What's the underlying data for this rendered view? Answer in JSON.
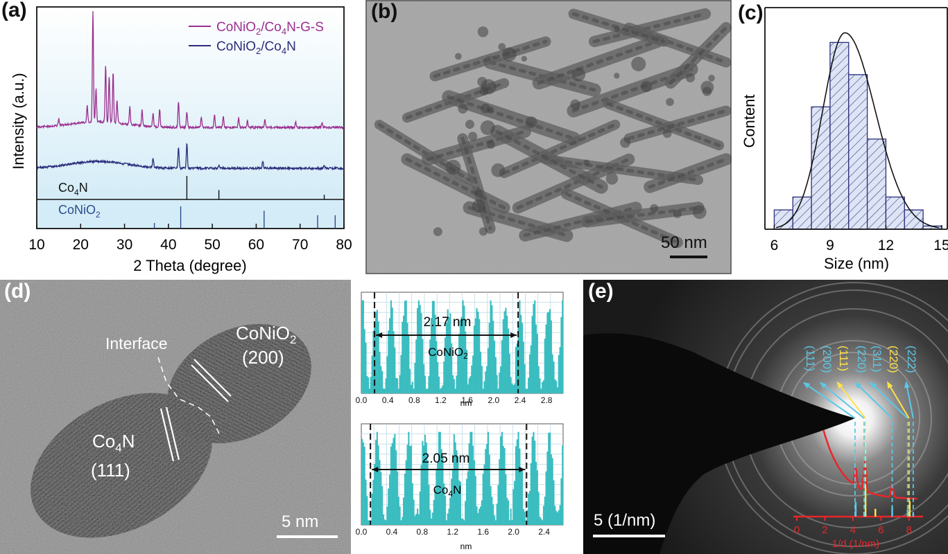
{
  "panels": {
    "a": {
      "label": "(a)",
      "legend": [
        "CoNiO2/Co4N-G-S",
        "CoNiO2/Co4N"
      ],
      "legend_colors": [
        "#9b2e8e",
        "#2b2d7c"
      ],
      "ylabel": "Intensity (a.u.)",
      "xlabel": "2 Theta (degree)",
      "ref1": "Co4N",
      "ref2": "CoNiO2"
    },
    "b": {
      "label": "(b)",
      "scale": "50 nm"
    },
    "c": {
      "label": "(c)",
      "ylabel": "Content",
      "xlabel": "Size (nm)"
    },
    "d": {
      "label": "(d)",
      "interface": "Interface",
      "phase1": "CoNiO2",
      "phase1_plane": "(200)",
      "phase2": "Co4N",
      "phase2_plane": "(111)",
      "scale": "5 nm",
      "profile1": {
        "distance": "2.17 nm",
        "name": "CoNiO2",
        "xlabel": "nm"
      },
      "profile2": {
        "distance": "2.05 nm",
        "name": "Co4N",
        "xlabel": "nm"
      }
    },
    "e": {
      "label": "(e)",
      "scale": "5 (1/nm)",
      "xlabel": "1/d (1/nm)",
      "rings": [
        {
          "label": "(111)",
          "color": "#5bc8e8"
        },
        {
          "label": "(200)",
          "color": "#5bc8e8"
        },
        {
          "label": "(111)",
          "color": "#ffe24a"
        },
        {
          "label": "(220)",
          "color": "#5bc8e8"
        },
        {
          "label": "(311)",
          "color": "#5bc8e8"
        },
        {
          "label": "(220)",
          "color": "#ffe24a"
        },
        {
          "label": "(222)",
          "color": "#5bc8e8"
        }
      ]
    }
  },
  "chart_data": [
    {
      "panel": "a",
      "type": "line",
      "x_ticks": [
        10,
        20,
        30,
        40,
        50,
        60,
        70,
        80
      ],
      "xlim": [
        10,
        80
      ],
      "series": [
        {
          "name": "CoNiO2/Co4N-G-S",
          "peaks": [
            [
              15,
              0.06
            ],
            [
              21.5,
              0.15
            ],
            [
              22.8,
              1.0
            ],
            [
              23.5,
              0.3
            ],
            [
              25.7,
              0.52
            ],
            [
              26.5,
              0.42
            ],
            [
              27.4,
              0.46
            ],
            [
              28.3,
              0.2
            ],
            [
              31.2,
              0.16
            ],
            [
              34,
              0.14
            ],
            [
              36.5,
              0.12
            ],
            [
              38,
              0.16
            ],
            [
              42.3,
              0.24
            ],
            [
              44.2,
              0.14
            ],
            [
              47.5,
              0.09
            ],
            [
              50.5,
              0.12
            ],
            [
              52.5,
              0.1
            ],
            [
              56,
              0.09
            ],
            [
              58,
              0.06
            ],
            [
              62,
              0.07
            ],
            [
              69,
              0.05
            ],
            [
              75,
              0.04
            ]
          ]
        },
        {
          "name": "CoNiO2/Co4N",
          "peaks": [
            [
              36.5,
              0.12
            ],
            [
              42.3,
              0.27
            ],
            [
              44.2,
              0.34
            ],
            [
              51.5,
              0.05
            ],
            [
              61.5,
              0.1
            ],
            [
              75.5,
              0.03
            ]
          ]
        }
      ],
      "reference_Co4N": [
        [
          44.2,
          1.0
        ],
        [
          51.5,
          0.4
        ],
        [
          75.5,
          0.2
        ]
      ],
      "reference_CoNiO2": [
        [
          36.8,
          0.25
        ],
        [
          42.8,
          1.0
        ],
        [
          61.8,
          0.8
        ],
        [
          74,
          0.6
        ],
        [
          78,
          0.6
        ]
      ]
    },
    {
      "panel": "c",
      "type": "bar",
      "x_ticks": [
        6,
        9,
        12,
        15
      ],
      "bin_starts": [
        6,
        7,
        8,
        9,
        10,
        11,
        12,
        13,
        14
      ],
      "values": [
        3,
        5,
        19,
        29,
        24,
        14,
        5,
        3,
        0.5
      ],
      "fit": "gaussian",
      "fit_peak": 9.8
    },
    {
      "panel": "d-profile-1",
      "type": "bar",
      "x_ticks": [
        "0.0",
        "0.4",
        "0.8",
        "1.2",
        "1.6",
        "2.0",
        "2.4",
        "2.8"
      ],
      "xlim": [
        0,
        3.05
      ],
      "markers": [
        0.2,
        2.37
      ]
    },
    {
      "panel": "d-profile-2",
      "type": "bar",
      "x_ticks": [
        "0.0",
        "0.4",
        "0.8",
        "1.2",
        "1.6",
        "2.0",
        "2.4"
      ],
      "xlim": [
        0,
        2.65
      ],
      "markers": [
        0.12,
        2.17
      ]
    },
    {
      "panel": "e",
      "type": "line",
      "x_ticks": [
        0,
        2,
        4,
        6,
        8
      ],
      "xlim": [
        0,
        9
      ],
      "ring_positions": [
        4.15,
        4.8,
        4.9,
        6.8,
        7.9,
        8.0,
        8.3
      ],
      "bars_blue": [
        [
          4.2,
          0.6
        ],
        [
          4.8,
          0.2
        ],
        [
          6.8,
          0.4
        ],
        [
          7.9,
          0.3
        ],
        [
          8.3,
          0.15
        ]
      ],
      "bars_yellow": [
        [
          4.9,
          1.0
        ],
        [
          5.6,
          0.25
        ],
        [
          8.05,
          0.5
        ]
      ]
    }
  ]
}
